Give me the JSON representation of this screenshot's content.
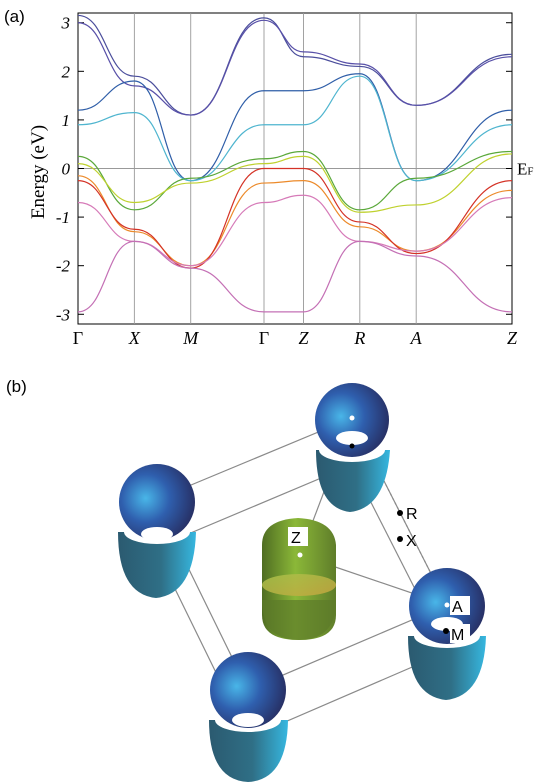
{
  "panel_a": {
    "label": "(a)",
    "ylabel": "Energy (eV)",
    "fermi_label": "E",
    "fermi_sub": "F",
    "yticks": [
      "3",
      "2",
      "1",
      "0",
      "-1",
      "-2",
      "-3"
    ],
    "xticks": [
      "Γ",
      "X",
      "M",
      "Γ",
      "Z",
      "R",
      "A",
      "Z"
    ]
  },
  "panel_b": {
    "label": "(b)",
    "points": [
      "R",
      "X",
      "Z",
      "A",
      "M"
    ]
  },
  "chart_data": {
    "type": "line",
    "title": "",
    "xlabel": "",
    "ylabel": "Energy (eV)",
    "ylim": [
      -3.2,
      3.2
    ],
    "grid": "vertical lines at high-symmetry points",
    "categories": [
      "Γ",
      "X",
      "M",
      "Γ",
      "Z",
      "R",
      "A",
      "Z"
    ],
    "kpath": [
      0,
      1,
      2,
      3.3,
      4,
      5,
      6,
      7.7
    ],
    "series": [
      {
        "color": "#4b4e9c",
        "values": [
          3.15,
          1.9,
          1.1,
          3.1,
          2.3,
          2.1,
          1.3,
          2.35
        ]
      },
      {
        "color": "#5850a8",
        "values": [
          3.0,
          1.7,
          1.1,
          3.05,
          2.4,
          2.15,
          1.3,
          2.3
        ]
      },
      {
        "color": "#2f5ea8",
        "values": [
          1.2,
          1.8,
          -0.25,
          1.6,
          1.6,
          1.95,
          -0.25,
          1.2
        ]
      },
      {
        "color": "#4fb5cf",
        "values": [
          0.9,
          1.15,
          -0.25,
          0.9,
          0.9,
          1.9,
          -0.25,
          0.9
        ]
      },
      {
        "color": "#5aa83a",
        "values": [
          0.25,
          -0.85,
          -0.2,
          0.2,
          0.35,
          -0.85,
          -0.2,
          0.35
        ]
      },
      {
        "color": "#bfd12e",
        "values": [
          0.1,
          -0.7,
          -0.3,
          0.1,
          0.25,
          -0.9,
          -0.75,
          0.3
        ]
      },
      {
        "color": "#ec8a2a",
        "values": [
          -0.15,
          -1.3,
          -2.0,
          -0.3,
          -0.25,
          -1.2,
          -1.7,
          -0.45
        ]
      },
      {
        "color": "#d43226",
        "values": [
          -0.25,
          -1.25,
          -2.05,
          0.0,
          0.0,
          -1.1,
          -1.75,
          -0.25
        ]
      },
      {
        "color": "#d67ab8",
        "values": [
          -0.7,
          -1.5,
          -2.0,
          -0.7,
          -0.55,
          -1.5,
          -1.7,
          -0.6
        ]
      },
      {
        "color": "#c470b5",
        "values": [
          -2.95,
          -1.5,
          -2.05,
          -2.95,
          -2.95,
          -1.5,
          -1.8,
          -2.95
        ]
      }
    ]
  }
}
